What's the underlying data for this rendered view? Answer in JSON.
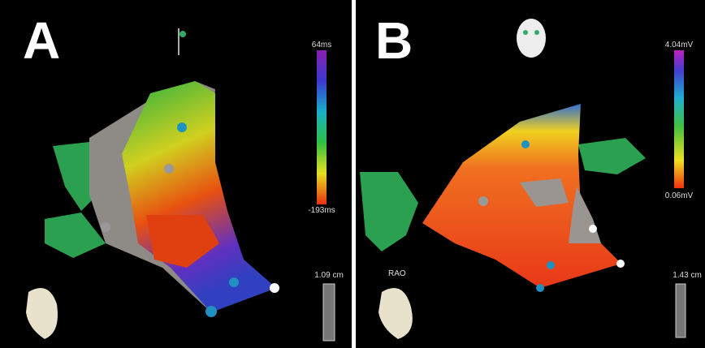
{
  "panels": [
    {
      "label": "A",
      "scale_top": "64ms",
      "scale_bottom": "-193ms",
      "ruler": "1.09 cm"
    },
    {
      "label": "B",
      "scale_top": "4.04mV",
      "scale_bottom": "0.06mV",
      "view": "RAO",
      "ruler": "1.43 cm"
    }
  ]
}
